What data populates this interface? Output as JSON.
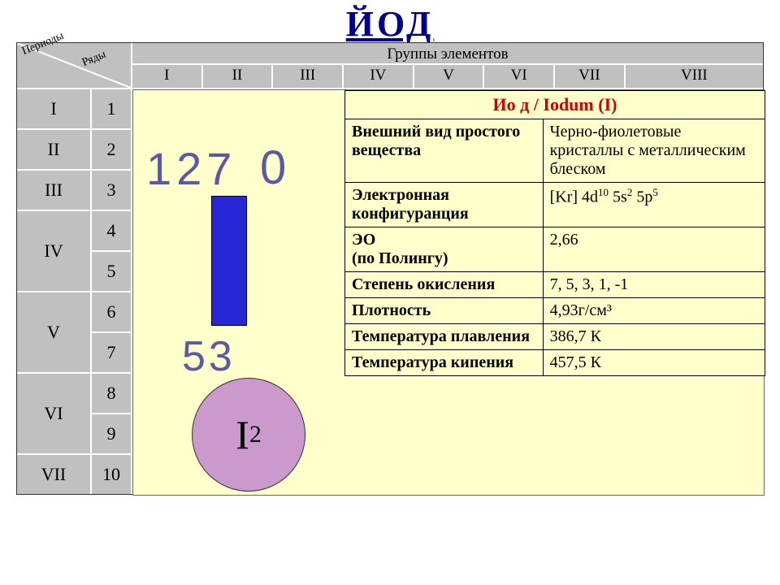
{
  "title": "ЙОД",
  "periodic": {
    "diag_label_periods": "Периоды",
    "diag_label_rows": "Ряды",
    "groups_header": "Группы элементов",
    "group_labels": [
      "I",
      "II",
      "III",
      "IV",
      "V",
      "VI",
      "VII",
      "VIII"
    ],
    "period_labels": [
      "I",
      "II",
      "III",
      "IV",
      "V",
      "VI",
      "VII"
    ],
    "row_labels": [
      "1",
      "2",
      "3",
      "4",
      "5",
      "6",
      "7",
      "8",
      "9",
      "10"
    ]
  },
  "element": {
    "mass": "127",
    "zero": "0",
    "bar_color": "#2726d6",
    "atomic_number": "53",
    "molecule_label": "I",
    "molecule_sub": "2",
    "circle_color": "#cc99cc"
  },
  "info": {
    "header": "Ио д / Iodum (I)",
    "rows": [
      {
        "prop": "Внешний вид простого вещества",
        "val": "Черно-фиолетовые кристаллы с металлическим блеском"
      },
      {
        "prop": "Электронная конфигуранция",
        "val_html": "[Kr] 4d<sup class='s'>10</sup> 5s<sup class='s'>2</sup> 5p<sup class='s'>5</sup>"
      },
      {
        "prop": " ЭО\n(по Полингу)",
        "val": "2,66"
      },
      {
        "prop": "Степень окисления",
        "val": "7, 5, 3, 1, -1"
      },
      {
        "prop": "Плотность",
        "val": "4,93г/см³"
      },
      {
        "prop": "Температура плавления",
        "val": "386,7 К"
      },
      {
        "prop": "Температура кипения",
        "val": "457,5 К"
      }
    ]
  },
  "colors": {
    "header_bg": "#c0c0c0",
    "panel_bg": "#ffffcc",
    "title_color": "#000088",
    "number_color": "#5959a8",
    "info_header_color": "#cc0000"
  }
}
